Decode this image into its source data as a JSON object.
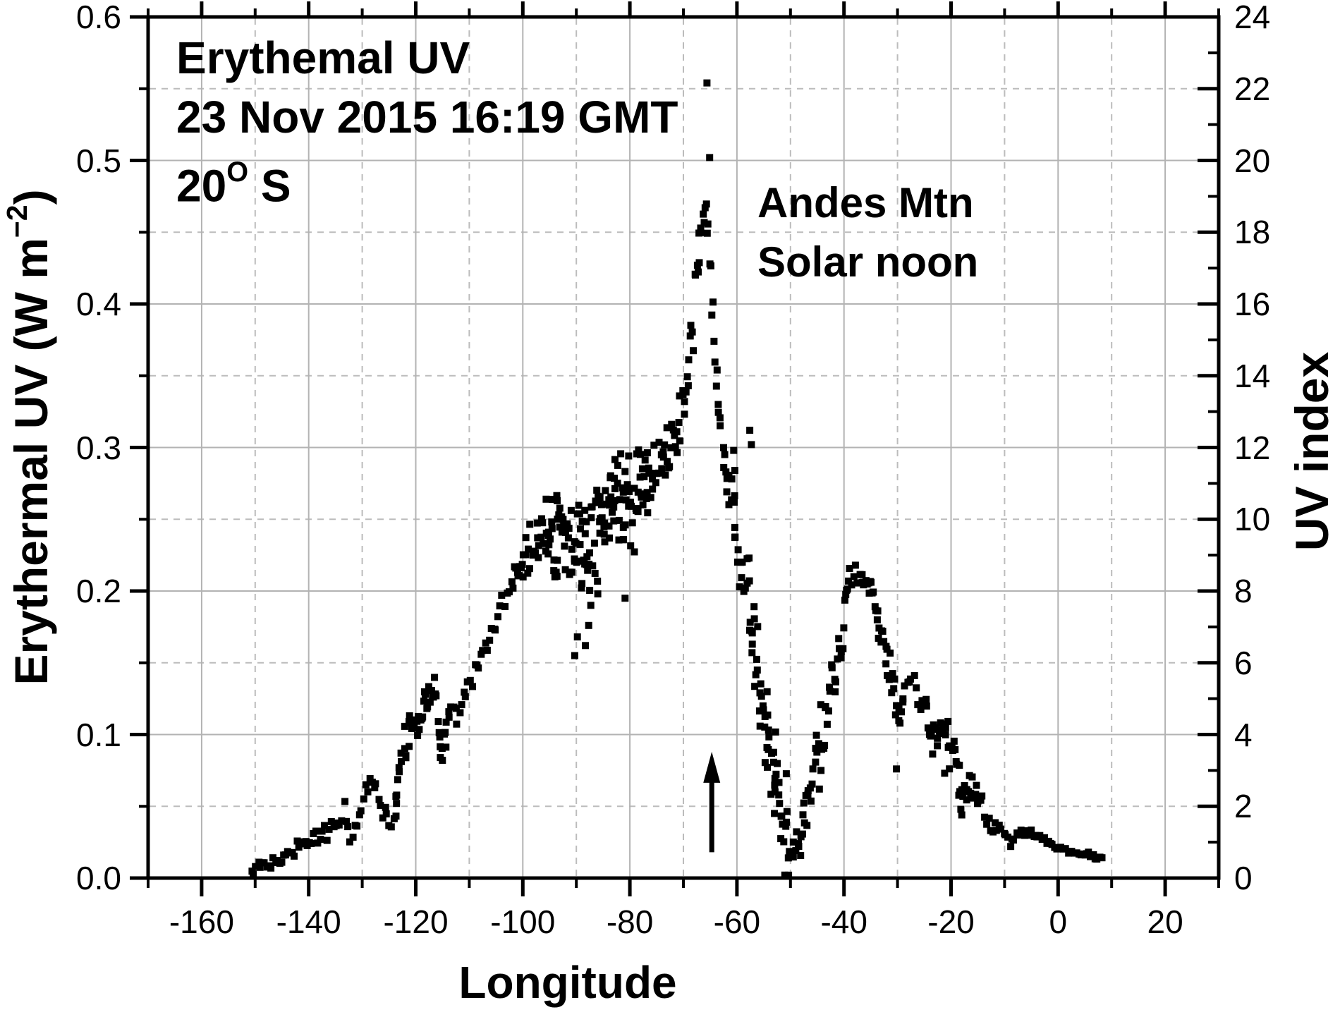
{
  "figure": {
    "background": "#ffffff",
    "axis_color": "#000000",
    "grid_major_color": "#b3b3b3",
    "grid_minor_color": "#bcbcbc",
    "point_color": "#000000"
  },
  "titles": {
    "inplot_line1": "Erythemal UV",
    "inplot_line2": "23 Nov 2015 16:19 GMT",
    "inplot_line3_base": "20",
    "inplot_line3_sup": "O",
    "inplot_line3_suffix": " S",
    "annotation_line1": "Andes Mtn",
    "annotation_line2": "Solar noon",
    "xaxis": "Longitude",
    "yaxis_left_pre": "Erythermal UV (W m",
    "yaxis_left_sup": "−2",
    "yaxis_left_post": ")",
    "yaxis_right": "UV index"
  },
  "chart_data": {
    "type": "scatter",
    "title": "Erythemal UV, 23 Nov 2015 16:19 GMT, 20 deg S",
    "xlabel": "Longitude",
    "ylabel": "Erythermal UV (W m^-2)",
    "ylabel_right": "UV index",
    "x_range": [
      -170,
      30
    ],
    "y_range": [
      0,
      0.6
    ],
    "y_right_range": [
      0,
      24
    ],
    "grid": "major-solid, minor-dashed",
    "legend_position": "none",
    "marker": "black-square",
    "x_major_ticks": [
      {
        "lon": -160,
        "label": "-160"
      },
      {
        "lon": -140,
        "label": "-140"
      },
      {
        "lon": -120,
        "label": "-120"
      },
      {
        "lon": -100,
        "label": "-100"
      },
      {
        "lon": -80,
        "label": "-80"
      },
      {
        "lon": -60,
        "label": "-60"
      },
      {
        "lon": -40,
        "label": "-40"
      },
      {
        "lon": -20,
        "label": "-20"
      },
      {
        "lon": 0,
        "label": "0"
      },
      {
        "lon": 20,
        "label": "20"
      }
    ],
    "x_minor_step": 10,
    "y_left_ticks": [
      {
        "v": 0.0,
        "label": "0.0"
      },
      {
        "v": 0.1,
        "label": "0.1"
      },
      {
        "v": 0.2,
        "label": "0.2"
      },
      {
        "v": 0.3,
        "label": "0.3"
      },
      {
        "v": 0.4,
        "label": "0.4"
      },
      {
        "v": 0.5,
        "label": "0.5"
      },
      {
        "v": 0.6,
        "label": "0.6"
      }
    ],
    "y_left_minor_step": 0.05,
    "y_right_ticks": [
      {
        "uvi": 0,
        "label": "0"
      },
      {
        "uvi": 2,
        "label": "2"
      },
      {
        "uvi": 4,
        "label": "4"
      },
      {
        "uvi": 6,
        "label": "6"
      },
      {
        "uvi": 8,
        "label": "8"
      },
      {
        "uvi": 10,
        "label": "10"
      },
      {
        "uvi": 12,
        "label": "12"
      },
      {
        "uvi": 14,
        "label": "14"
      },
      {
        "uvi": 16,
        "label": "16"
      },
      {
        "uvi": 18,
        "label": "18"
      },
      {
        "uvi": 20,
        "label": "20"
      },
      {
        "uvi": 22,
        "label": "22"
      },
      {
        "uvi": 24,
        "label": "24"
      }
    ],
    "y_right_minor_step": 1,
    "annotation_arrow": {
      "lon": -64.7,
      "uv_tail": 0.018,
      "uv_tip": 0.088
    },
    "series_note": "spine = [longitude, erythemal_uv_W_m2, vertical_scatter_halfwidth]; scatter band drawn around spine",
    "spine": [
      [
        -150.6,
        0.008,
        0.004
      ],
      [
        -149,
        0.009,
        0.004
      ],
      [
        -147,
        0.012,
        0.004
      ],
      [
        -145,
        0.015,
        0.004
      ],
      [
        -143,
        0.019,
        0.005
      ],
      [
        -141,
        0.022,
        0.005
      ],
      [
        -139,
        0.026,
        0.005
      ],
      [
        -137,
        0.031,
        0.005
      ],
      [
        -135.5,
        0.036,
        0.005
      ],
      [
        -134,
        0.042,
        0.006
      ],
      [
        -133.2,
        0.047,
        0.006
      ],
      [
        -132.7,
        0.032,
        0.009
      ],
      [
        -132.2,
        0.024,
        0.006
      ],
      [
        -131.5,
        0.032,
        0.006
      ],
      [
        -130.5,
        0.044,
        0.007
      ],
      [
        -129.5,
        0.058,
        0.007
      ],
      [
        -128.7,
        0.072,
        0.006
      ],
      [
        -128,
        0.066,
        0.006
      ],
      [
        -127,
        0.056,
        0.006
      ],
      [
        -126,
        0.047,
        0.006
      ],
      [
        -125,
        0.041,
        0.006
      ],
      [
        -124.2,
        0.038,
        0.006
      ],
      [
        -123.4,
        0.068,
        0.018
      ],
      [
        -122.5,
        0.088,
        0.012
      ],
      [
        -121.5,
        0.098,
        0.01
      ],
      [
        -120.5,
        0.104,
        0.01
      ],
      [
        -119.5,
        0.11,
        0.01
      ],
      [
        -118.5,
        0.118,
        0.01
      ],
      [
        -117.3,
        0.13,
        0.009
      ],
      [
        -116.3,
        0.126,
        0.012
      ],
      [
        -115.6,
        0.102,
        0.014
      ],
      [
        -115,
        0.09,
        0.01
      ],
      [
        -114.3,
        0.1,
        0.01
      ],
      [
        -113.5,
        0.117,
        0.009
      ],
      [
        -112.8,
        0.127,
        0.008
      ],
      [
        -112.2,
        0.112,
        0.008
      ],
      [
        -111.5,
        0.118,
        0.008
      ],
      [
        -110.5,
        0.127,
        0.008
      ],
      [
        -109.5,
        0.136,
        0.008
      ],
      [
        -108.5,
        0.146,
        0.008
      ],
      [
        -107.5,
        0.155,
        0.008
      ],
      [
        -106.5,
        0.164,
        0.008
      ],
      [
        -105.5,
        0.174,
        0.008
      ],
      [
        -104.5,
        0.184,
        0.008
      ],
      [
        -103.5,
        0.193,
        0.008
      ],
      [
        -102.5,
        0.202,
        0.008
      ],
      [
        -101.5,
        0.21,
        0.009
      ],
      [
        -100.5,
        0.218,
        0.01
      ],
      [
        -99.5,
        0.225,
        0.012
      ],
      [
        -98.5,
        0.23,
        0.014
      ],
      [
        -97.5,
        0.234,
        0.017
      ],
      [
        -96.5,
        0.239,
        0.02
      ],
      [
        -95.5,
        0.244,
        0.022
      ],
      [
        -94.5,
        0.242,
        0.025
      ],
      [
        -93.5,
        0.238,
        0.027
      ],
      [
        -92.5,
        0.234,
        0.029
      ],
      [
        -91.5,
        0.23,
        0.03
      ],
      [
        -90.5,
        0.225,
        0.031
      ],
      [
        -89.5,
        0.231,
        0.031
      ],
      [
        -88.5,
        0.238,
        0.032
      ],
      [
        -87.5,
        0.231,
        0.033
      ],
      [
        -86.5,
        0.243,
        0.031
      ],
      [
        -85.5,
        0.249,
        0.029
      ],
      [
        -84.5,
        0.255,
        0.027
      ],
      [
        -83.5,
        0.261,
        0.026
      ],
      [
        -82.5,
        0.267,
        0.026
      ],
      [
        -81.5,
        0.264,
        0.027
      ],
      [
        -80.5,
        0.26,
        0.029
      ],
      [
        -79.5,
        0.264,
        0.029
      ],
      [
        -78.5,
        0.269,
        0.027
      ],
      [
        -77.5,
        0.274,
        0.025
      ],
      [
        -76.5,
        0.279,
        0.023
      ],
      [
        -75.5,
        0.284,
        0.021
      ],
      [
        -74.5,
        0.289,
        0.019
      ],
      [
        -73.5,
        0.295,
        0.017
      ],
      [
        -72.5,
        0.301,
        0.016
      ],
      [
        -71.5,
        0.309,
        0.016
      ],
      [
        -70.5,
        0.319,
        0.016
      ],
      [
        -69.5,
        0.338,
        0.017
      ],
      [
        -68.5,
        0.372,
        0.019
      ],
      [
        -67.8,
        0.408,
        0.017
      ],
      [
        -67.2,
        0.432,
        0.014
      ],
      [
        -66.6,
        0.45,
        0.012
      ],
      [
        -66,
        0.461,
        0.011
      ],
      [
        -65.6,
        0.468,
        0.011
      ],
      [
        -65.2,
        0.449,
        0.013
      ],
      [
        -64.8,
        0.419,
        0.014
      ],
      [
        -64.3,
        0.378,
        0.014
      ],
      [
        -63.9,
        0.349,
        0.012
      ],
      [
        -63.4,
        0.329,
        0.012
      ],
      [
        -62.9,
        0.31,
        0.012
      ],
      [
        -62.3,
        0.294,
        0.012
      ],
      [
        -61.6,
        0.274,
        0.014
      ],
      [
        -60.9,
        0.258,
        0.018
      ],
      [
        -60.3,
        0.243,
        0.023
      ],
      [
        -59.6,
        0.229,
        0.02
      ],
      [
        -58.9,
        0.217,
        0.018
      ],
      [
        -58.2,
        0.208,
        0.02
      ],
      [
        -57.4,
        0.188,
        0.024
      ],
      [
        -56.6,
        0.159,
        0.028
      ],
      [
        -55.8,
        0.134,
        0.029
      ],
      [
        -55,
        0.113,
        0.029
      ],
      [
        -54.2,
        0.093,
        0.026
      ],
      [
        -53.4,
        0.075,
        0.023
      ],
      [
        -52.6,
        0.065,
        0.028
      ],
      [
        -51.8,
        0.052,
        0.03
      ],
      [
        -51,
        0.038,
        0.032
      ],
      [
        -50.4,
        0.022,
        0.018
      ],
      [
        -49.9,
        0.01,
        0.007
      ],
      [
        -49.4,
        0.014,
        0.01
      ],
      [
        -48.8,
        0.023,
        0.016
      ],
      [
        -48.2,
        0.033,
        0.022
      ],
      [
        -47.4,
        0.046,
        0.018
      ],
      [
        -46.6,
        0.06,
        0.016
      ],
      [
        -45.8,
        0.074,
        0.016
      ],
      [
        -45,
        0.089,
        0.016
      ],
      [
        -44.2,
        0.104,
        0.017
      ],
      [
        -43.4,
        0.117,
        0.015
      ],
      [
        -42.6,
        0.129,
        0.015
      ],
      [
        -41.8,
        0.142,
        0.015
      ],
      [
        -41,
        0.157,
        0.015
      ],
      [
        -40.3,
        0.174,
        0.014
      ],
      [
        -39.7,
        0.194,
        0.012
      ],
      [
        -39.2,
        0.206,
        0.01
      ],
      [
        -38.5,
        0.212,
        0.008
      ],
      [
        -37.8,
        0.217,
        0.008
      ],
      [
        -37,
        0.214,
        0.008
      ],
      [
        -36.2,
        0.209,
        0.01
      ],
      [
        -35.4,
        0.202,
        0.011
      ],
      [
        -34.6,
        0.191,
        0.012
      ],
      [
        -33.8,
        0.18,
        0.012
      ],
      [
        -33,
        0.169,
        0.012
      ],
      [
        -32.2,
        0.157,
        0.012
      ],
      [
        -31.4,
        0.144,
        0.013
      ],
      [
        -30.7,
        0.128,
        0.015
      ],
      [
        -30.1,
        0.104,
        0.017
      ],
      [
        -29.6,
        0.114,
        0.012
      ],
      [
        -29,
        0.129,
        0.01
      ],
      [
        -28.4,
        0.139,
        0.008
      ],
      [
        -27.6,
        0.136,
        0.008
      ],
      [
        -26.8,
        0.132,
        0.008
      ],
      [
        -26,
        0.127,
        0.008
      ],
      [
        -25.2,
        0.121,
        0.009
      ],
      [
        -24.4,
        0.114,
        0.012
      ],
      [
        -23.6,
        0.096,
        0.014
      ],
      [
        -23,
        0.104,
        0.012
      ],
      [
        -22.2,
        0.099,
        0.012
      ],
      [
        -21.4,
        0.094,
        0.015
      ],
      [
        -20.6,
        0.09,
        0.015
      ],
      [
        -19.8,
        0.089,
        0.012
      ],
      [
        -19,
        0.084,
        0.012
      ],
      [
        -18.2,
        0.061,
        0.014
      ],
      [
        -17.6,
        0.069,
        0.011
      ],
      [
        -17,
        0.065,
        0.01
      ],
      [
        -16.2,
        0.06,
        0.01
      ],
      [
        -15.4,
        0.056,
        0.01
      ],
      [
        -14.6,
        0.052,
        0.009
      ],
      [
        -13.8,
        0.047,
        0.008
      ],
      [
        -13,
        0.042,
        0.008
      ],
      [
        -12.2,
        0.038,
        0.007
      ],
      [
        -11.4,
        0.035,
        0.006
      ],
      [
        -10.6,
        0.033,
        0.006
      ],
      [
        -9.8,
        0.029,
        0.006
      ],
      [
        -9.2,
        0.021,
        0.006
      ],
      [
        -8.6,
        0.025,
        0.004
      ],
      [
        -8,
        0.028,
        0.003
      ],
      [
        -7.2,
        0.031,
        0.003
      ],
      [
        -6.4,
        0.033,
        0.003
      ],
      [
        -5.6,
        0.033,
        0.003
      ],
      [
        -4.8,
        0.031,
        0.002
      ],
      [
        -4,
        0.029,
        0.002
      ],
      [
        -3.2,
        0.027,
        0.002
      ],
      [
        -2.4,
        0.025,
        0.002
      ],
      [
        -1.6,
        0.023,
        0.002
      ],
      [
        -0.8,
        0.022,
        0.002
      ],
      [
        0,
        0.021,
        0.002
      ],
      [
        1,
        0.02,
        0.002
      ],
      [
        2,
        0.019,
        0.002
      ],
      [
        3,
        0.018,
        0.002
      ],
      [
        4,
        0.017,
        0.002
      ],
      [
        5,
        0.016,
        0.002
      ],
      [
        6,
        0.016,
        0.002
      ],
      [
        7,
        0.015,
        0.002
      ],
      [
        8.4,
        0.014,
        0.002
      ]
    ],
    "outlier_points": [
      [
        -65.6,
        0.554
      ],
      [
        -65.1,
        0.502
      ],
      [
        -60.6,
        0.298
      ],
      [
        -60.4,
        0.284
      ],
      [
        -57.6,
        0.312
      ],
      [
        -57.3,
        0.302
      ],
      [
        -90.3,
        0.155
      ],
      [
        -89.8,
        0.168
      ],
      [
        -88.3,
        0.162
      ],
      [
        -87.7,
        0.176
      ],
      [
        -87.3,
        0.19
      ],
      [
        -86,
        0.198
      ],
      [
        -80.9,
        0.195
      ],
      [
        -44.6,
        0.062
      ],
      [
        -44.3,
        0.075
      ],
      [
        -30.2,
        0.076
      ],
      [
        -21.2,
        0.073
      ],
      [
        -18,
        0.044
      ],
      [
        -115.4,
        0.084
      ],
      [
        -123.6,
        0.052
      ]
    ]
  }
}
